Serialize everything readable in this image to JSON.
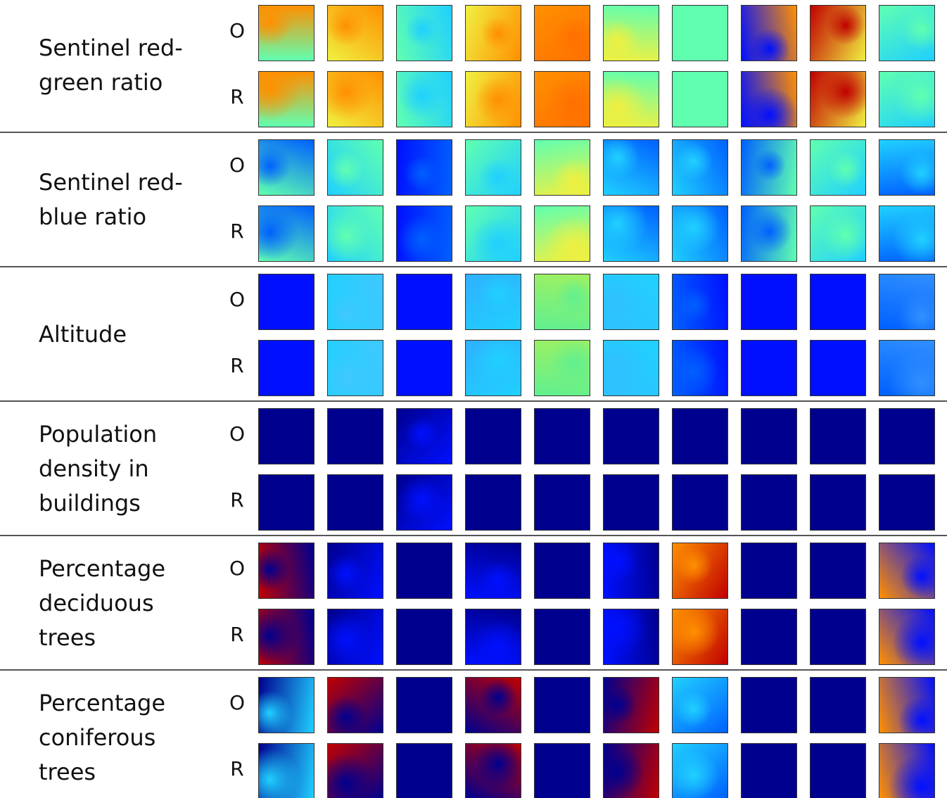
{
  "groups": [
    {
      "label_lines": [
        "Sentinel red-",
        "green ratio"
      ],
      "rows": [
        "O",
        "R"
      ]
    },
    {
      "label_lines": [
        "Sentinel red-",
        "blue ratio"
      ],
      "rows": [
        "O",
        "R"
      ]
    },
    {
      "label_lines": [
        "Altitude"
      ],
      "rows": [
        "O",
        "R"
      ]
    },
    {
      "label_lines": [
        "Population",
        "density in",
        "buildings"
      ],
      "rows": [
        "O",
        "R"
      ]
    },
    {
      "label_lines": [
        "Percentage",
        "deciduous",
        "trees"
      ],
      "rows": [
        "O",
        "R"
      ]
    },
    {
      "label_lines": [
        "Percentage",
        "coniferous",
        "trees"
      ],
      "rows": [
        "O",
        "R"
      ]
    }
  ]
}
